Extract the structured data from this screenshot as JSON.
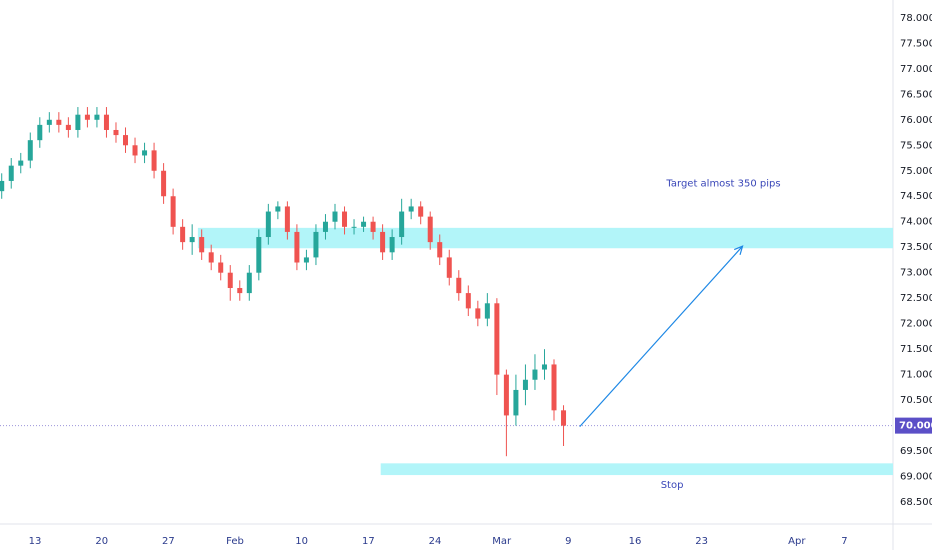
{
  "chart_data": {
    "type": "candlestick",
    "x": [
      -3.5,
      -2.5,
      -1.5,
      -0.5,
      0.5,
      1.5,
      2.5,
      3.5,
      4.5,
      5.5,
      6.5,
      7.5,
      8.5,
      9.5,
      10.5,
      11.5,
      12.5,
      13.5,
      14.5,
      15.5,
      16.5,
      17.5,
      18.5,
      19.5,
      20.5,
      21.5,
      22.5,
      23.5,
      24.5,
      25.5,
      26.5,
      27.5,
      28.5,
      29.5,
      30.5,
      31.5,
      32.5,
      33.5,
      34.5,
      35.5,
      36.5,
      37.5,
      38.5,
      39.5,
      40.5,
      41.5,
      42.5,
      43.5,
      44.5,
      45.5,
      46.5,
      47.5,
      48.5,
      49.5,
      50.5,
      51.5,
      52.5,
      53.5,
      54.5,
      55.5
    ],
    "open": [
      74.6,
      74.8,
      75.1,
      75.2,
      75.6,
      75.9,
      76.0,
      75.9,
      75.8,
      76.1,
      76.0,
      76.1,
      75.8,
      75.7,
      75.5,
      75.3,
      75.4,
      75.0,
      74.5,
      73.9,
      73.6,
      73.7,
      73.4,
      73.2,
      73.0,
      72.7,
      72.6,
      73.0,
      73.7,
      74.2,
      74.3,
      73.8,
      73.2,
      73.3,
      73.8,
      74.0,
      74.2,
      73.9,
      73.9,
      74.0,
      73.8,
      73.4,
      73.7,
      74.2,
      74.3,
      74.1,
      73.6,
      73.3,
      72.9,
      72.6,
      72.3,
      72.1,
      72.4,
      71.0,
      70.2,
      70.7,
      70.9,
      71.1,
      71.2,
      70.3
    ],
    "high": [
      74.95,
      75.25,
      75.35,
      75.75,
      76.05,
      76.15,
      76.15,
      76.05,
      76.25,
      76.25,
      76.25,
      76.25,
      75.95,
      75.85,
      75.65,
      75.55,
      75.55,
      75.15,
      74.65,
      74.05,
      73.95,
      73.85,
      73.55,
      73.35,
      73.15,
      72.85,
      73.15,
      73.85,
      74.35,
      74.4,
      74.4,
      73.95,
      73.45,
      73.95,
      74.15,
      74.35,
      74.3,
      74.05,
      74.1,
      74.1,
      73.95,
      73.85,
      74.45,
      74.45,
      74.4,
      74.2,
      73.75,
      73.45,
      73.05,
      72.75,
      72.45,
      72.6,
      72.5,
      71.1,
      71.0,
      71.2,
      71.4,
      71.5,
      71.3,
      70.4
    ],
    "low": [
      74.45,
      74.65,
      74.95,
      75.05,
      75.45,
      75.75,
      75.75,
      75.65,
      75.65,
      75.85,
      75.85,
      75.65,
      75.55,
      75.35,
      75.15,
      75.15,
      74.85,
      74.35,
      73.75,
      73.45,
      73.35,
      73.25,
      73.05,
      72.85,
      72.45,
      72.45,
      72.45,
      72.85,
      73.55,
      74.05,
      73.65,
      73.05,
      73.05,
      73.15,
      73.65,
      73.85,
      73.75,
      73.75,
      73.8,
      73.65,
      73.25,
      73.25,
      73.55,
      74.05,
      73.95,
      73.45,
      73.15,
      72.75,
      72.45,
      72.15,
      71.95,
      71.95,
      70.6,
      69.4,
      70.0,
      70.4,
      70.7,
      70.9,
      70.1,
      69.6
    ],
    "close": [
      74.8,
      75.1,
      75.2,
      75.6,
      75.9,
      76.0,
      75.9,
      75.8,
      76.1,
      76.0,
      76.1,
      75.8,
      75.7,
      75.5,
      75.3,
      75.4,
      75.0,
      74.5,
      73.9,
      73.6,
      73.7,
      73.4,
      73.2,
      73.0,
      72.7,
      72.6,
      73.0,
      73.7,
      74.2,
      74.3,
      73.8,
      73.2,
      73.3,
      73.8,
      74.0,
      74.2,
      73.9,
      73.9,
      74.0,
      73.8,
      73.4,
      73.7,
      74.2,
      74.3,
      74.1,
      73.6,
      73.3,
      72.9,
      72.6,
      72.3,
      72.1,
      72.4,
      71.0,
      70.2,
      70.7,
      70.9,
      71.1,
      71.2,
      70.3,
      70.0
    ],
    "up_color": "#26a69a",
    "down_color": "#ef5350",
    "xlim": [
      -3.68,
      90.1
    ],
    "ylim": [
      68.07,
      78.35
    ],
    "xticks": [
      {
        "value": 0,
        "label": "13"
      },
      {
        "value": 7,
        "label": "20"
      },
      {
        "value": 14,
        "label": "27"
      },
      {
        "value": 21,
        "label": "Feb"
      },
      {
        "value": 28,
        "label": "10"
      },
      {
        "value": 35,
        "label": "17"
      },
      {
        "value": 42,
        "label": "24"
      },
      {
        "value": 49,
        "label": "Mar"
      },
      {
        "value": 56,
        "label": "9"
      },
      {
        "value": 63,
        "label": "16"
      },
      {
        "value": 70,
        "label": "23"
      },
      {
        "value": 80,
        "label": "Apr"
      },
      {
        "value": 85,
        "label": "7"
      }
    ],
    "yticks": [
      {
        "value": 68.5,
        "label": "68.500"
      },
      {
        "value": 69,
        "label": "69.000"
      },
      {
        "value": 69.5,
        "label": "69.500"
      },
      {
        "value": 70,
        "label": "70.000"
      },
      {
        "value": 70.5,
        "label": "70.500"
      },
      {
        "value": 71,
        "label": "71.000"
      },
      {
        "value": 71.5,
        "label": "71.500"
      },
      {
        "value": 72,
        "label": "72.000"
      },
      {
        "value": 72.5,
        "label": "72.500"
      },
      {
        "value": 73,
        "label": "73.000"
      },
      {
        "value": 73.5,
        "label": "73.500"
      },
      {
        "value": 74,
        "label": "74.000"
      },
      {
        "value": 74.5,
        "label": "74.500"
      },
      {
        "value": 75,
        "label": "75.000"
      },
      {
        "value": 75.5,
        "label": "75.500"
      },
      {
        "value": 76,
        "label": "76.000"
      },
      {
        "value": 76.5,
        "label": "76.500"
      },
      {
        "value": 77,
        "label": "77.000"
      },
      {
        "value": 77.5,
        "label": "77.500"
      },
      {
        "value": 78,
        "label": "78.000"
      }
    ],
    "last_price": {
      "value": 70,
      "label": "70.000"
    },
    "zones": [
      {
        "low": 73.48,
        "high": 73.88,
        "from": 17.1,
        "color": "#b2f5f9"
      },
      {
        "low": 69.03,
        "high": 69.26,
        "from": 36.3,
        "color": "#b2f5f9"
      }
    ],
    "arrow": {
      "x": [
        57.2,
        74.3
      ],
      "y": [
        69.98,
        73.52
      ],
      "color": "#1e88e5"
    },
    "annotations": [
      {
        "text": "Target almost 350 pips",
        "x": 72.3,
        "y": 74.75
      },
      {
        "text": "Stop",
        "x": 66.9,
        "y": 68.84
      }
    ]
  }
}
